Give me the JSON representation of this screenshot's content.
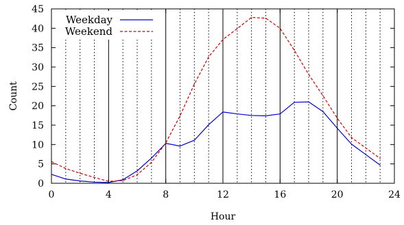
{
  "chart_data": {
    "type": "line",
    "xlabel": "Hour",
    "ylabel": "Count",
    "xlim": [
      0,
      24
    ],
    "ylim": [
      0,
      45
    ],
    "xticks": [
      0,
      4,
      8,
      12,
      16,
      20,
      24
    ],
    "yticks": [
      0,
      5,
      10,
      15,
      20,
      25,
      30,
      35,
      40,
      45
    ],
    "grid": {
      "vertical_solid": [
        4,
        8,
        12,
        16,
        20
      ],
      "vertical_dotted": [
        1,
        2,
        3,
        5,
        6,
        7,
        9,
        10,
        11,
        13,
        14,
        15,
        17,
        18,
        19,
        21,
        22,
        23
      ]
    },
    "legend_position": "top-left",
    "x": [
      0,
      1,
      2,
      3,
      4,
      5,
      6,
      7,
      8,
      9,
      10,
      11,
      12,
      13,
      14,
      15,
      16,
      17,
      18,
      19,
      20,
      21,
      22,
      23
    ],
    "series": [
      {
        "name": "Weekday",
        "color": "#0000cc",
        "style": "solid",
        "values": [
          2.3,
          1.1,
          0.6,
          0.3,
          0.2,
          0.9,
          3.2,
          6.5,
          10.3,
          9.6,
          11.1,
          15.1,
          18.4,
          17.9,
          17.5,
          17.4,
          17.9,
          20.9,
          21.0,
          18.5,
          14.2,
          10.1,
          7.4,
          4.7
        ]
      },
      {
        "name": "Weekend",
        "color": "#cc0000",
        "style": "dashed",
        "values": [
          5.6,
          3.8,
          2.6,
          1.5,
          0.5,
          0.7,
          2.2,
          5.4,
          10.4,
          17.4,
          25.6,
          32.6,
          37.1,
          39.9,
          42.8,
          42.6,
          40.0,
          34.3,
          28.1,
          22.6,
          16.8,
          11.8,
          9.1,
          6.4
        ]
      }
    ]
  }
}
